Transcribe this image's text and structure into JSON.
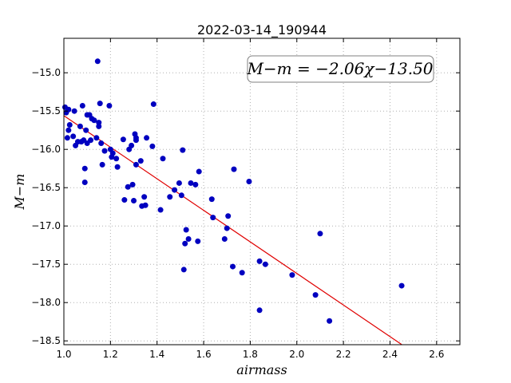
{
  "chart_data": {
    "type": "scatter",
    "title": "2022-03-14_190944",
    "xlabel": "airmass",
    "ylabel": "M−m",
    "xlim": [
      1.0,
      2.7
    ],
    "ylim": [
      -18.55,
      -14.55
    ],
    "y_inverted": true,
    "grid": true,
    "xticks": [
      1.0,
      1.2,
      1.4,
      1.6,
      1.8,
      2.0,
      2.2,
      2.4,
      2.6
    ],
    "xtick_labels": [
      "1.0",
      "1.2",
      "1.4",
      "1.6",
      "1.8",
      "2.0",
      "2.2",
      "2.4",
      "2.6"
    ],
    "yticks": [
      -15.0,
      -15.5,
      -16.0,
      -16.5,
      -17.0,
      -17.5,
      -18.0,
      -18.5
    ],
    "ytick_labels": [
      "−15.0",
      "−15.5",
      "−16.0",
      "−16.5",
      "−17.0",
      "−17.5",
      "−18.0",
      "−18.5"
    ],
    "annotation": "M−m = −2.06χ−13.50",
    "annotation_placement": "top-right",
    "fit": {
      "slope": -2.06,
      "intercept": -13.5,
      "x_range": [
        1.0,
        2.45
      ],
      "color": "#e00000"
    },
    "marker_color": "#0000c0",
    "points": [
      [
        1.005,
        -15.45
      ],
      [
        1.01,
        -15.52
      ],
      [
        1.015,
        -15.85
      ],
      [
        1.02,
        -15.48
      ],
      [
        1.02,
        -15.75
      ],
      [
        1.025,
        -15.68
      ],
      [
        1.04,
        -15.83
      ],
      [
        1.045,
        -15.5
      ],
      [
        1.05,
        -15.95
      ],
      [
        1.06,
        -15.9
      ],
      [
        1.07,
        -15.7
      ],
      [
        1.075,
        -15.9
      ],
      [
        1.08,
        -15.43
      ],
      [
        1.085,
        -15.88
      ],
      [
        1.09,
        -16.25
      ],
      [
        1.09,
        -16.43
      ],
      [
        1.095,
        -15.75
      ],
      [
        1.1,
        -15.55
      ],
      [
        1.1,
        -15.92
      ],
      [
        1.11,
        -15.55
      ],
      [
        1.115,
        -15.88
      ],
      [
        1.12,
        -15.6
      ],
      [
        1.13,
        -15.62
      ],
      [
        1.14,
        -15.85
      ],
      [
        1.145,
        -14.85
      ],
      [
        1.15,
        -15.65
      ],
      [
        1.15,
        -15.7
      ],
      [
        1.155,
        -15.4
      ],
      [
        1.16,
        -15.92
      ],
      [
        1.165,
        -16.2
      ],
      [
        1.175,
        -16.02
      ],
      [
        1.195,
        -15.43
      ],
      [
        1.2,
        -16.0
      ],
      [
        1.205,
        -16.1
      ],
      [
        1.21,
        -16.05
      ],
      [
        1.225,
        -16.12
      ],
      [
        1.23,
        -16.23
      ],
      [
        1.255,
        -15.87
      ],
      [
        1.26,
        -16.66
      ],
      [
        1.275,
        -16.49
      ],
      [
        1.28,
        -16.0
      ],
      [
        1.29,
        -15.95
      ],
      [
        1.295,
        -16.46
      ],
      [
        1.3,
        -16.67
      ],
      [
        1.305,
        -15.8
      ],
      [
        1.31,
        -15.85
      ],
      [
        1.31,
        -15.88
      ],
      [
        1.31,
        -16.2
      ],
      [
        1.33,
        -16.15
      ],
      [
        1.335,
        -16.74
      ],
      [
        1.345,
        -16.62
      ],
      [
        1.35,
        -16.73
      ],
      [
        1.355,
        -15.85
      ],
      [
        1.38,
        -15.96
      ],
      [
        1.385,
        -15.41
      ],
      [
        1.415,
        -16.79
      ],
      [
        1.425,
        -16.12
      ],
      [
        1.455,
        -16.62
      ],
      [
        1.475,
        -16.53
      ],
      [
        1.495,
        -16.44
      ],
      [
        1.505,
        -16.6
      ],
      [
        1.51,
        -16.01
      ],
      [
        1.515,
        -17.57
      ],
      [
        1.52,
        -17.23
      ],
      [
        1.525,
        -17.05
      ],
      [
        1.535,
        -17.17
      ],
      [
        1.545,
        -16.44
      ],
      [
        1.565,
        -16.46
      ],
      [
        1.575,
        -17.2
      ],
      [
        1.58,
        -16.29
      ],
      [
        1.635,
        -16.65
      ],
      [
        1.64,
        -16.89
      ],
      [
        1.69,
        -17.17
      ],
      [
        1.7,
        -17.03
      ],
      [
        1.705,
        -16.87
      ],
      [
        1.725,
        -17.53
      ],
      [
        1.73,
        -16.26
      ],
      [
        1.765,
        -17.61
      ],
      [
        1.795,
        -16.42
      ],
      [
        1.84,
        -17.46
      ],
      [
        1.84,
        -18.1
      ],
      [
        1.865,
        -17.5
      ],
      [
        1.98,
        -17.64
      ],
      [
        2.08,
        -17.9
      ],
      [
        2.1,
        -17.1
      ],
      [
        2.14,
        -18.24
      ],
      [
        2.45,
        -17.78
      ]
    ]
  }
}
